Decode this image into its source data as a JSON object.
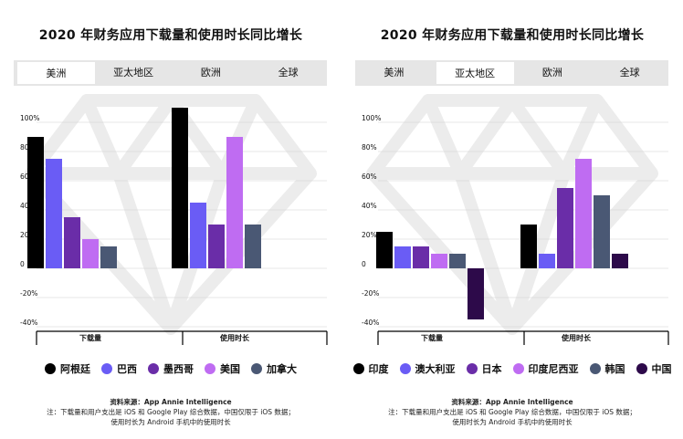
{
  "colors": {
    "series": [
      "#000000",
      "#6a5cf5",
      "#6a2da8",
      "#bf6cf2",
      "#4a5874",
      "#2d0a4a"
    ],
    "axis": "#000000",
    "grid": "#cfcfcf",
    "watermark": "#ececec"
  },
  "panels": [
    {
      "title": "2020 年财务应用下载量和使用时长同比增长",
      "tabs": [
        {
          "label": "美洲",
          "active": true
        },
        {
          "label": "亚太地区",
          "active": false
        },
        {
          "label": "欧洲",
          "active": false
        },
        {
          "label": "全球",
          "active": false
        }
      ],
      "legend": [
        "阿根廷",
        "巴西",
        "墨西哥",
        "美国",
        "加拿大"
      ],
      "footer": {
        "source": "资料来源：App Annie Intelligence",
        "note1": "注：下载量和用户支出是 iOS 和 Google Play 综合数据，中国仅限于 iOS 数据；",
        "note2": "使用时长为 Android 手机中的使用时长"
      }
    },
    {
      "title": "2020 年财务应用下载量和使用时长同比增长",
      "tabs": [
        {
          "label": "美洲",
          "active": false
        },
        {
          "label": "亚太地区",
          "active": true
        },
        {
          "label": "欧洲",
          "active": false
        },
        {
          "label": "全球",
          "active": false
        }
      ],
      "legend": [
        "印度",
        "澳大利亚",
        "日本",
        "印度尼西亚",
        "韩国",
        "中国"
      ],
      "footer": {
        "source": "资料来源：App Annie Intelligence",
        "note1": "注：下载量和用户支出是 iOS 和 Google Play 综合数据，中国仅限于 iOS 数据；",
        "note2": "使用时长为 Android 手机中的使用时长"
      }
    }
  ],
  "chart_data": [
    {
      "type": "bar",
      "title": "2020 年财务应用下载量和使用时长同比增长",
      "region": "美洲",
      "categories": [
        "下载量",
        "使用时长"
      ],
      "series": [
        {
          "name": "阿根廷",
          "values": [
            90,
            110
          ]
        },
        {
          "name": "巴西",
          "values": [
            75,
            45
          ]
        },
        {
          "name": "墨西哥",
          "values": [
            35,
            30
          ]
        },
        {
          "name": "美国",
          "values": [
            20,
            90
          ]
        },
        {
          "name": "加拿大",
          "values": [
            15,
            30
          ]
        }
      ],
      "yticks": [
        "100%",
        "80%",
        "60%",
        "40%",
        "20%",
        "0",
        "-20%",
        "-40%"
      ],
      "ylim": [
        -40,
        110
      ],
      "legend": "bottom",
      "grid": true
    },
    {
      "type": "bar",
      "title": "2020 年财务应用下载量和使用时长同比增长",
      "region": "亚太地区",
      "categories": [
        "下载量",
        "使用时长"
      ],
      "series": [
        {
          "name": "印度",
          "values": [
            25,
            30
          ]
        },
        {
          "name": "澳大利亚",
          "values": [
            15,
            10
          ]
        },
        {
          "name": "日本",
          "values": [
            15,
            55
          ]
        },
        {
          "name": "印度尼西亚",
          "values": [
            10,
            75
          ]
        },
        {
          "name": "韩国",
          "values": [
            10,
            50
          ]
        },
        {
          "name": "中国",
          "values": [
            -35,
            10
          ]
        }
      ],
      "yticks": [
        "100%",
        "80%",
        "60%",
        "40%",
        "20%",
        "0",
        "-20%",
        "-40%"
      ],
      "ylim": [
        -40,
        110
      ],
      "legend": "bottom",
      "grid": true
    }
  ]
}
